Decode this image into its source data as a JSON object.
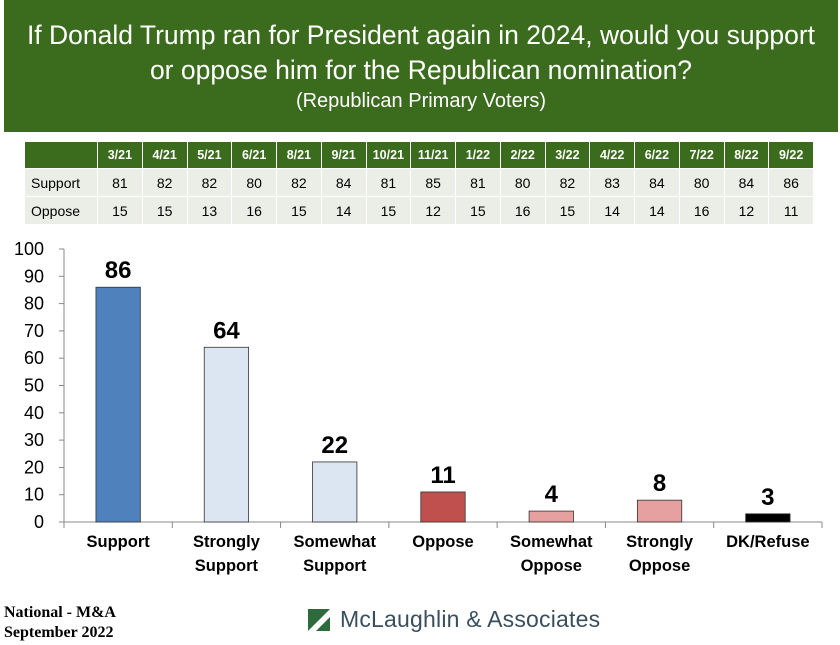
{
  "header": {
    "title_line1": "If Donald Trump ran for President again in 2024, would you support",
    "title_line2": "or oppose him for the Republican nomination?",
    "subtitle": "(Republican Primary Voters)"
  },
  "trend_table": {
    "dates": [
      "3/21",
      "4/21",
      "5/21",
      "6/21",
      "8/21",
      "9/21",
      "10/21",
      "11/21",
      "1/22",
      "2/22",
      "3/22",
      "4/22",
      "6/22",
      "7/22",
      "8/22",
      "9/22"
    ],
    "rows": [
      {
        "label": "Support",
        "values": [
          "81",
          "82",
          "82",
          "80",
          "82",
          "84",
          "81",
          "85",
          "81",
          "80",
          "82",
          "83",
          "84",
          "80",
          "84",
          "86"
        ]
      },
      {
        "label": "Oppose",
        "values": [
          "15",
          "15",
          "13",
          "16",
          "15",
          "14",
          "15",
          "12",
          "15",
          "16",
          "15",
          "14",
          "14",
          "16",
          "12",
          "11"
        ]
      }
    ]
  },
  "chart_data": {
    "type": "bar",
    "categories": [
      [
        "Support"
      ],
      [
        "Strongly",
        "Support"
      ],
      [
        "Somewhat",
        "Support"
      ],
      [
        "Oppose"
      ],
      [
        "Somewhat",
        "Oppose"
      ],
      [
        "Strongly",
        "Oppose"
      ],
      [
        "DK/Refuse"
      ]
    ],
    "values": [
      86,
      64,
      22,
      11,
      4,
      8,
      3
    ],
    "data_labels": [
      "86",
      "64",
      "22",
      "11",
      "4",
      "8",
      "3"
    ],
    "bar_colors": [
      "#4f81bd",
      "#dce6f2",
      "#dce6f2",
      "#c0504d",
      "#e6a0a0",
      "#e6a0a0",
      "#000000"
    ],
    "ylim": [
      0,
      100
    ],
    "yticks": [
      "0",
      "10",
      "20",
      "30",
      "40",
      "50",
      "60",
      "70",
      "80",
      "90",
      "100"
    ],
    "title": "",
    "xlabel": "",
    "ylabel": ""
  },
  "footer": {
    "source_line1": "National - M&A",
    "source_line2": "September 2022",
    "logo_text": "McLaughlin & Associates"
  },
  "colors": {
    "header_bg": "#3b6b1d",
    "logo_green": "#2e6b3c"
  }
}
